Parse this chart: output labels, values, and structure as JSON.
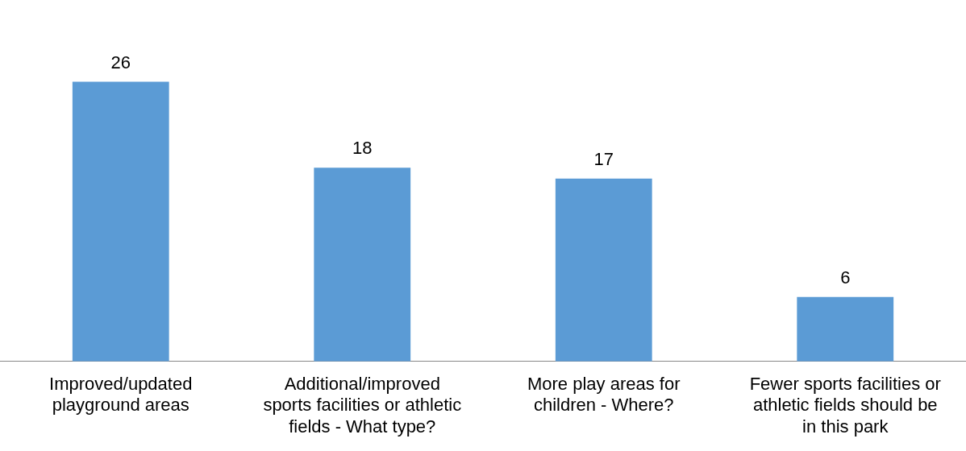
{
  "chart_data": {
    "type": "bar",
    "categories": [
      "Improved/updated playground areas",
      "Additional/improved sports facilities or athletic fields - What type?",
      "More play areas for children - Where?",
      "Fewer sports facilities or athletic fields should be in this park"
    ],
    "values": [
      26,
      18,
      17,
      6
    ],
    "color": "#5b9bd5",
    "data_labels": true,
    "grid": false,
    "legend": false
  }
}
